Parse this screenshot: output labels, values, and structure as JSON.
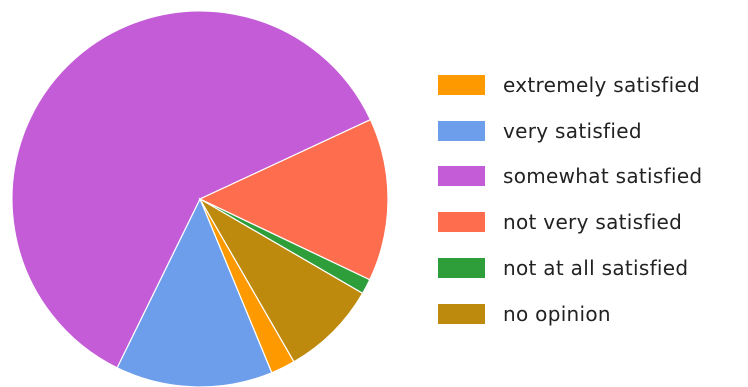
{
  "chart_data": {
    "type": "pie",
    "title": "",
    "legend_position": "right",
    "slices": [
      {
        "label": "extremely satisfied",
        "value": 2.1,
        "color": "#ff9900"
      },
      {
        "label": "very satisfied",
        "value": 13.5,
        "color": "#6d9eeb"
      },
      {
        "label": "somewhat satisfied",
        "value": 60.8,
        "color": "#c35cd6"
      },
      {
        "label": "not very satisfied",
        "value": 14.0,
        "color": "#ff6d4f"
      },
      {
        "label": "not at all satisfied",
        "value": 1.3,
        "color": "#2e9e3a"
      },
      {
        "label": "no opinion",
        "value": 8.3,
        "color": "#bd8a0d"
      }
    ]
  }
}
